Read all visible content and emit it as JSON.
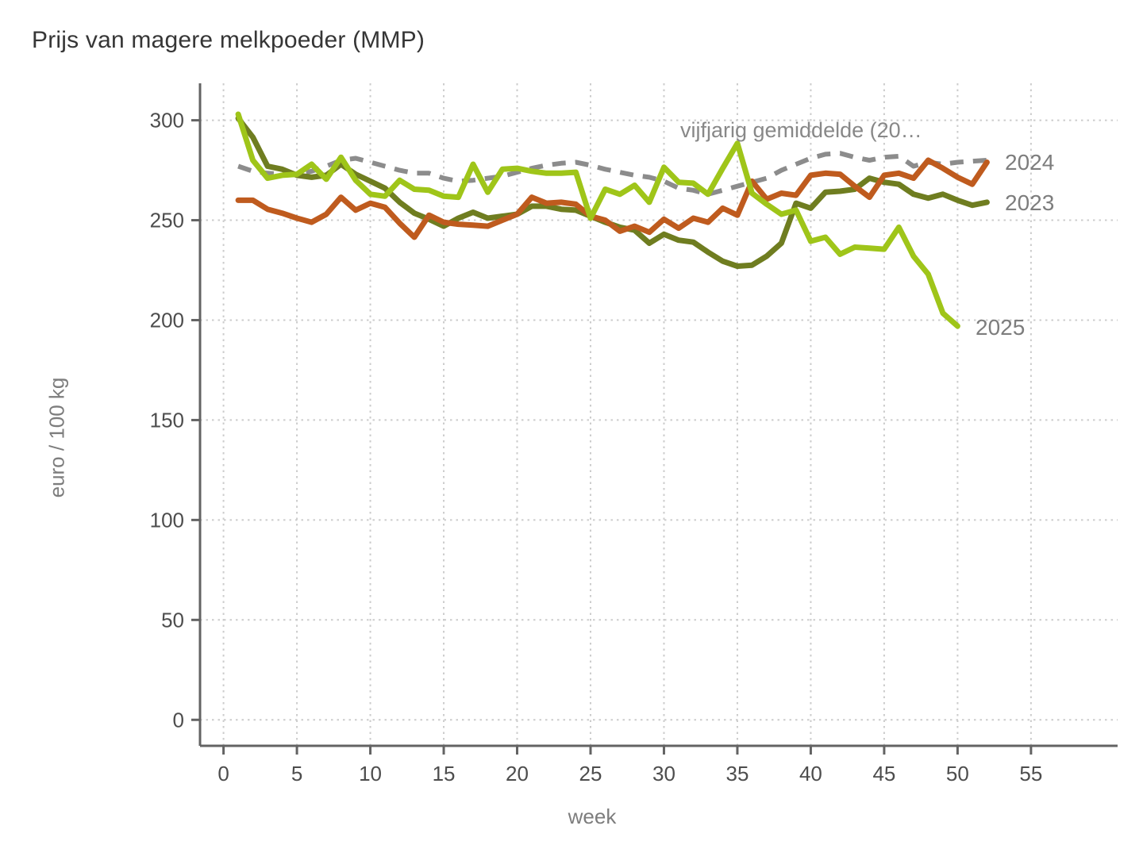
{
  "title": "Prijs van magere melkpoeder (MMP)",
  "chart_data": {
    "type": "line",
    "title": "Prijs van magere melkpoeder (MMP)",
    "xlabel": "week",
    "ylabel": "euro / 100 kg",
    "x_ticks": [
      0,
      5,
      10,
      15,
      20,
      25,
      30,
      35,
      40,
      45,
      50,
      55
    ],
    "y_ticks": [
      0,
      50,
      100,
      150,
      200,
      250,
      300
    ],
    "xlim": [
      -1.6,
      60.9
    ],
    "ylim": [
      -13,
      318.5
    ],
    "grid": true,
    "grid_color": "#cccccc",
    "axis_color": "#636363",
    "tick_label_color": "#4d4d4d",
    "legend_position": "labels-on-chart",
    "series": [
      {
        "name": "vijfjarig gemiddelde (20…",
        "color": "#8c8c8c",
        "dashed": true,
        "width": 6,
        "x_start": 1,
        "values": [
          277,
          274.5,
          273.5,
          273,
          273,
          274.5,
          277,
          280,
          281,
          279,
          277,
          275,
          273.5,
          273.5,
          271,
          269.5,
          270,
          271,
          272,
          274,
          276,
          277.5,
          278.5,
          279,
          277.5,
          275.5,
          274,
          272.5,
          271.5,
          269.5,
          266,
          265,
          263,
          265,
          267,
          269,
          271,
          275,
          278,
          281,
          283,
          283.5,
          281.5,
          280,
          281.5,
          282,
          277,
          279,
          278,
          279,
          279.5,
          280
        ]
      },
      {
        "name": "2023",
        "color": "#6f7d20",
        "dashed": false,
        "width": 7,
        "x_start": 1,
        "values": [
          301,
          291.5,
          277,
          275.5,
          272.5,
          271.5,
          272.5,
          278,
          273,
          269.5,
          266,
          259,
          253.5,
          250.5,
          247,
          251,
          254,
          251,
          252,
          253,
          257,
          257,
          255.5,
          255,
          252,
          249,
          246.5,
          245,
          238.5,
          243,
          240,
          239,
          234,
          229.5,
          227,
          227.5,
          232,
          238.5,
          258.5,
          256,
          264,
          264.5,
          265.5,
          271,
          269,
          268,
          263,
          261,
          263,
          260,
          257.5,
          259
        ]
      },
      {
        "name": "2024",
        "color": "#bf5b1e",
        "dashed": false,
        "width": 7,
        "x_start": 1,
        "values": [
          260,
          260,
          255.5,
          253.5,
          251,
          249,
          253,
          261.5,
          255,
          258.5,
          256.5,
          248.5,
          241.5,
          252.5,
          249,
          248,
          247.5,
          247,
          250,
          253,
          261.5,
          258.5,
          259,
          258,
          252,
          250,
          244.5,
          247,
          244,
          250.5,
          246,
          251,
          249,
          256,
          252.5,
          269.5,
          260.5,
          263.5,
          262.5,
          272.5,
          273.5,
          273,
          267,
          261.5,
          272.5,
          273.5,
          271,
          280,
          276,
          271.5,
          268,
          279
        ]
      },
      {
        "name": "2025",
        "color": "#9fc519",
        "dashed": false,
        "width": 7,
        "x_start": 1,
        "values": [
          303,
          280,
          271,
          272.5,
          273,
          278,
          270.5,
          281.5,
          270,
          263,
          262,
          270,
          265.5,
          265,
          262,
          261.5,
          278,
          264,
          275.5,
          276,
          274.5,
          273.5,
          273.5,
          274,
          251,
          265.5,
          263,
          267.5,
          259,
          276.5,
          269,
          268.5,
          263,
          276,
          288.5,
          263.5,
          258,
          253,
          255,
          239.5,
          241.5,
          233,
          236.5,
          236,
          235.5,
          246.5,
          232,
          223,
          203.5,
          197
        ]
      }
    ],
    "annotations": [
      {
        "text": "vijfjarig gemiddelde (20…"
      },
      {
        "text": "2024"
      },
      {
        "text": "2023"
      },
      {
        "text": "2025"
      }
    ]
  },
  "labels": {
    "avg": "vijfjarig gemiddelde (20…",
    "y2024": "2024",
    "y2023": "2023",
    "y2025": "2025"
  }
}
